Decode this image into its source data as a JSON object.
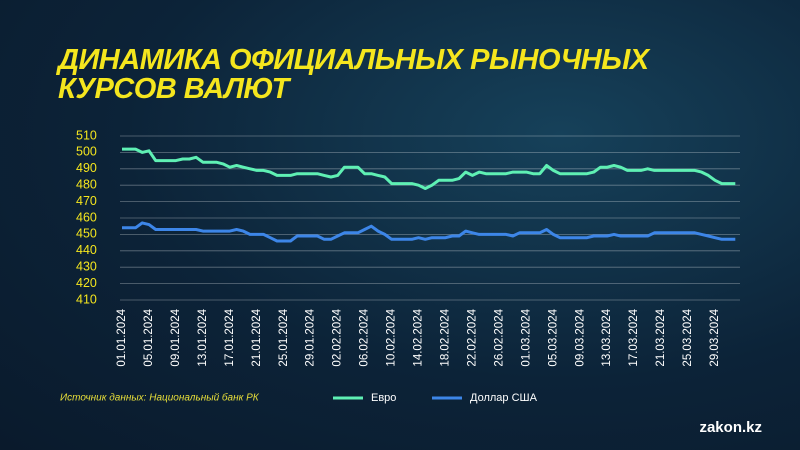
{
  "chart_data": {
    "type": "line",
    "title": "ДИНАМИКА ОФИЦИАЛЬНЫХ РЫНОЧНЫХ КУРСОВ ВАЛЮТ",
    "source": "Источник данных: Национальный банк РК",
    "brand": "zakon.kz",
    "categories": [
      "01.01.2024",
      null,
      null,
      null,
      "05.01.2024",
      null,
      null,
      null,
      "09.01.2024",
      null,
      null,
      null,
      "13.01.2024",
      null,
      null,
      null,
      "17.01.2024",
      null,
      null,
      null,
      "21.01.2024",
      null,
      null,
      null,
      "25.01.2024",
      null,
      null,
      null,
      "29.01.2024",
      null,
      null,
      null,
      "02.02.2024",
      null,
      null,
      null,
      "06.02.2024",
      null,
      null,
      null,
      "10.02.2024",
      null,
      null,
      null,
      "14.02.2024",
      null,
      null,
      null,
      "18.02.2024",
      null,
      null,
      null,
      "22.02.2024",
      null,
      null,
      null,
      "26.02.2024",
      null,
      null,
      null,
      "01.03.2024",
      null,
      null,
      null,
      "05.03.2024",
      null,
      null,
      null,
      "09.03.2024",
      null,
      null,
      null,
      "13.03.2024",
      null,
      null,
      null,
      "17.03.2024",
      null,
      null,
      null,
      "21.03.2024",
      null,
      null,
      null,
      "25.03.2024",
      null,
      null,
      null,
      "29.03.2024",
      null,
      null,
      null
    ],
    "series": [
      {
        "name": "Евро",
        "color": "#5ff0b4",
        "values": [
          502,
          502,
          502,
          500,
          501,
          495,
          495,
          495,
          495,
          496,
          496,
          497,
          494,
          494,
          494,
          493,
          491,
          492,
          491,
          490,
          489,
          489,
          488,
          486,
          486,
          486,
          487,
          487,
          487,
          487,
          486,
          485,
          486,
          491,
          491,
          491,
          487,
          487,
          486,
          485,
          481,
          481,
          481,
          481,
          480,
          478,
          480,
          483,
          483,
          483,
          484,
          488,
          486,
          488,
          487,
          487,
          487,
          487,
          488,
          488,
          488,
          487,
          487,
          492,
          489,
          487,
          487,
          487,
          487,
          487,
          488,
          491,
          491,
          492,
          491,
          489,
          489,
          489,
          490,
          489,
          489,
          489,
          489,
          489,
          489,
          489,
          488,
          486,
          483,
          481,
          481,
          481
        ]
      },
      {
        "name": "Доллар США",
        "color": "#3d86e8",
        "values": [
          454,
          454,
          454,
          457,
          456,
          453,
          453,
          453,
          453,
          453,
          453,
          453,
          452,
          452,
          452,
          452,
          452,
          453,
          452,
          450,
          450,
          450,
          448,
          446,
          446,
          446,
          449,
          449,
          449,
          449,
          447,
          447,
          449,
          451,
          451,
          451,
          453,
          455,
          452,
          450,
          447,
          447,
          447,
          447,
          448,
          447,
          448,
          448,
          448,
          449,
          449,
          452,
          451,
          450,
          450,
          450,
          450,
          450,
          449,
          451,
          451,
          451,
          451,
          453,
          450,
          448,
          448,
          448,
          448,
          448,
          449,
          449,
          449,
          450,
          449,
          449,
          449,
          449,
          449,
          451,
          451,
          451,
          451,
          451,
          451,
          451,
          450,
          449,
          448,
          447,
          447,
          447
        ]
      }
    ],
    "ylim": [
      410,
      510
    ],
    "yticks": [
      410,
      420,
      430,
      440,
      450,
      460,
      470,
      480,
      490,
      500,
      510
    ],
    "grid": true
  }
}
